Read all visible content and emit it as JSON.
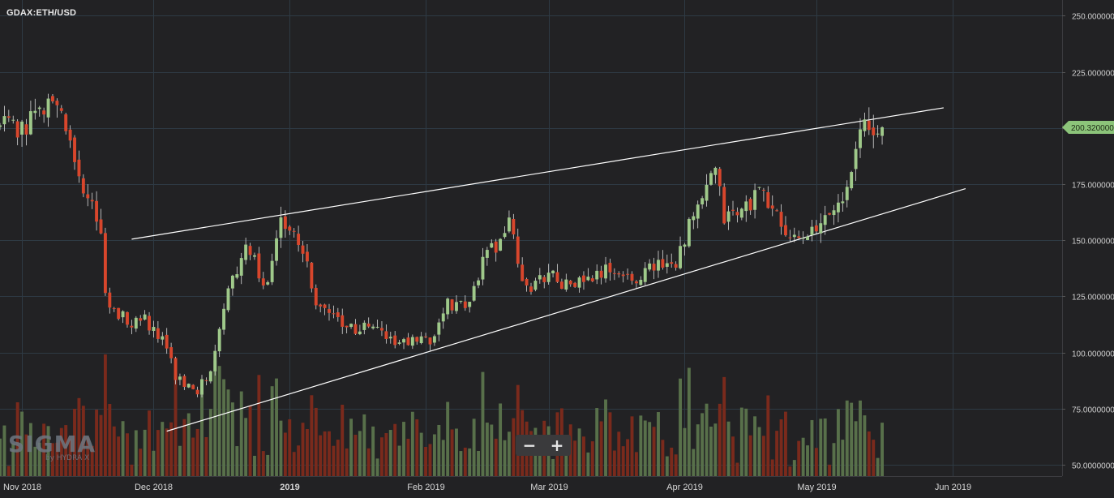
{
  "symbol": "GDAX:ETH/USD",
  "logo": {
    "main": "SIGMA",
    "sub": "by HYDRA X"
  },
  "zoom": {
    "minus": "−",
    "plus": "+"
  },
  "colors": {
    "background": "#222224",
    "grid": "#2e3a44",
    "up": "#9fc98a",
    "down": "#d8462c",
    "vol_up": "#58704a",
    "vol_down": "#7a2a1c",
    "trendline": "#ffffff",
    "badge": "#8cc47a"
  },
  "chart_data": {
    "type": "candlestick",
    "title": "GDAX:ETH/USD",
    "y_ticks": [
      "250.0000000",
      "225.0000000",
      "200.0000000",
      "175.0000000",
      "150.0000000",
      "125.0000000",
      "100.0000000",
      "75.0000000",
      "50.0000000"
    ],
    "y_tick_values": [
      250,
      225,
      200,
      175,
      150,
      125,
      100,
      75,
      50
    ],
    "ylim": [
      45,
      257
    ],
    "x_ticks": [
      "Nov 2018",
      "Dec 2018",
      "2019",
      "Feb 2019",
      "Mar 2019",
      "Apr 2019",
      "May 2019",
      "Jun 2019"
    ],
    "x_tick_dates": [
      "2018-11-01",
      "2018-12-01",
      "2019-01-01",
      "2019-02-01",
      "2019-03-01",
      "2019-04-01",
      "2019-05-01",
      "2019-06-01"
    ],
    "xlim": [
      "2018-10-27",
      "2019-06-26"
    ],
    "last_price": "200.3200000",
    "last_price_value": 200.32,
    "grid": true,
    "anchors": {
      "dates": [
        "2018-10-27",
        "2018-10-31",
        "2018-11-03",
        "2018-11-06",
        "2018-11-08",
        "2018-11-10",
        "2018-11-14",
        "2018-11-16",
        "2018-11-19",
        "2018-11-20",
        "2018-11-22",
        "2018-11-24",
        "2018-11-25",
        "2018-11-28",
        "2018-12-01",
        "2018-12-04",
        "2018-12-06",
        "2018-12-08",
        "2018-12-11",
        "2018-12-14",
        "2018-12-16",
        "2018-12-18",
        "2018-12-20",
        "2018-12-22",
        "2018-12-24",
        "2018-12-26",
        "2018-12-28",
        "2018-12-30",
        "2019-01-01",
        "2019-01-04",
        "2019-01-07",
        "2019-01-10",
        "2019-01-13",
        "2019-01-16",
        "2019-01-20",
        "2019-01-25",
        "2019-01-30",
        "2019-02-02",
        "2019-02-06",
        "2019-02-08",
        "2019-02-11",
        "2019-02-14",
        "2019-02-18",
        "2019-02-20",
        "2019-02-23",
        "2019-02-25",
        "2019-03-01",
        "2019-03-05",
        "2019-03-10",
        "2019-03-15",
        "2019-03-20",
        "2019-03-25",
        "2019-03-30",
        "2019-04-02",
        "2019-04-05",
        "2019-04-08",
        "2019-04-10",
        "2019-04-14",
        "2019-04-18",
        "2019-04-22",
        "2019-04-25",
        "2019-04-27",
        "2019-05-01",
        "2019-05-04",
        "2019-05-07",
        "2019-05-10",
        "2019-05-12",
        "2019-05-14",
        "2019-05-16"
      ],
      "closes": [
        201,
        200,
        203,
        209,
        211,
        208,
        178,
        170,
        150,
        128,
        118,
        117,
        112,
        117,
        110,
        102,
        90,
        86,
        83,
        93,
        112,
        131,
        134,
        150,
        140,
        128,
        139,
        158,
        158,
        147,
        120,
        118,
        114,
        110,
        112,
        104,
        105,
        104,
        123,
        120,
        121,
        142,
        150,
        158,
        132,
        128,
        136,
        130,
        132,
        137,
        132,
        139,
        141,
        156,
        168,
        181,
        160,
        163,
        171,
        162,
        148,
        152,
        153,
        162,
        168,
        193,
        201,
        195,
        200.32
      ]
    },
    "trendlines": [
      {
        "from": [
          "2018-11-26",
          150.5
        ],
        "to": [
          "2019-05-30",
          209
        ]
      },
      {
        "from": [
          "2018-12-04",
          65
        ],
        "to": [
          "2019-06-04",
          173
        ]
      }
    ],
    "volume": "relative bars at bottom, colored by candle direction"
  }
}
